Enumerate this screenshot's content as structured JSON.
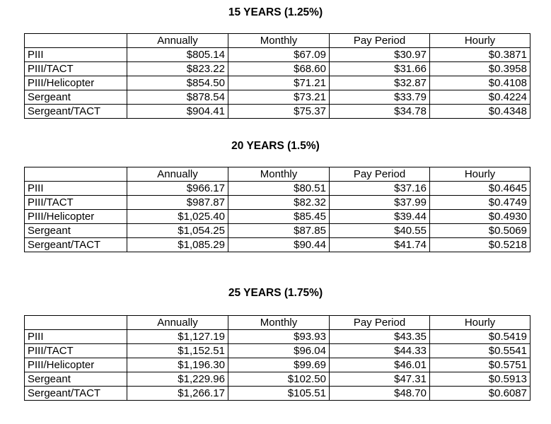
{
  "headers": [
    "",
    "Annually",
    "Monthly",
    "Pay Period",
    "Hourly"
  ],
  "sections": [
    {
      "title": "15 YEARS (1.25%)",
      "rows": [
        [
          "PIII",
          "$805.14",
          "$67.09",
          "$30.97",
          "$0.3871"
        ],
        [
          "PIII/TACT",
          "$823.22",
          "$68.60",
          "$31.66",
          "$0.3958"
        ],
        [
          "PIII/Helicopter",
          "$854.50",
          "$71.21",
          "$32.87",
          "$0.4108"
        ],
        [
          "Sergeant",
          "$878.54",
          "$73.21",
          "$33.79",
          "$0.4224"
        ],
        [
          "Sergeant/TACT",
          "$904.41",
          "$75.37",
          "$34.78",
          "$0.4348"
        ]
      ]
    },
    {
      "title": "20 YEARS (1.5%)",
      "rows": [
        [
          "PIII",
          "$966.17",
          "$80.51",
          "$37.16",
          "$0.4645"
        ],
        [
          "PIII/TACT",
          "$987.87",
          "$82.32",
          "$37.99",
          "$0.4749"
        ],
        [
          "PIII/Helicopter",
          "$1,025.40",
          "$85.45",
          "$39.44",
          "$0.4930"
        ],
        [
          "Sergeant",
          "$1,054.25",
          "$87.85",
          "$40.55",
          "$0.5069"
        ],
        [
          "Sergeant/TACT",
          "$1,085.29",
          "$90.44",
          "$41.74",
          "$0.5218"
        ]
      ]
    },
    {
      "title": "25 YEARS (1.75%)",
      "rows": [
        [
          "PIII",
          "$1,127.19",
          "$93.93",
          "$43.35",
          "$0.5419"
        ],
        [
          "PIII/TACT",
          "$1,152.51",
          "$96.04",
          "$44.33",
          "$0.5541"
        ],
        [
          "PIII/Helicopter",
          "$1,196.30",
          "$99.69",
          "$46.01",
          "$0.5751"
        ],
        [
          "Sergeant",
          "$1,229.96",
          "$102.50",
          "$47.31",
          "$0.5913"
        ],
        [
          "Sergeant/TACT",
          "$1,266.17",
          "$105.51",
          "$48.70",
          "$0.6087"
        ]
      ]
    }
  ]
}
